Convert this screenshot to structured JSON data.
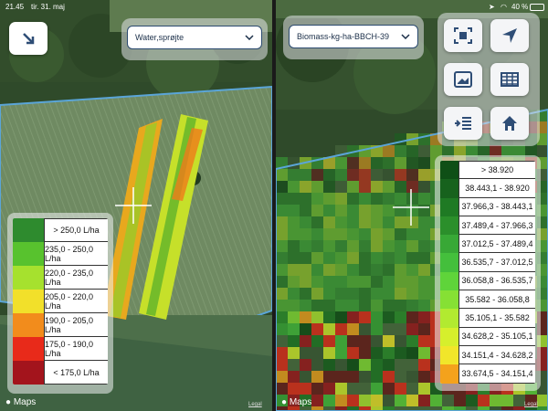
{
  "status": {
    "time": "21.45",
    "date": "tir. 31. maj",
    "battery": "40 %"
  },
  "left": {
    "layer_dropdown": {
      "value": "Water,sprøjte"
    },
    "legend": [
      {
        "label": "> 250,0 L/ha",
        "color": "#2e8b2e"
      },
      {
        "label": "235,0 - 250,0 L/ha",
        "color": "#58c22e"
      },
      {
        "label": "220,0 - 235,0 L/ha",
        "color": "#a6e12e"
      },
      {
        "label": "205,0 - 220,0 L/ha",
        "color": "#f2e02a"
      },
      {
        "label": "190,0 - 205,0 L/ha",
        "color": "#f28c1c"
      },
      {
        "label": "175,0 - 190,0 L/ha",
        "color": "#e82a1a"
      },
      {
        "label": "< 175,0 L/ha",
        "color": "#a3141c"
      }
    ]
  },
  "right": {
    "layer_dropdown": {
      "value": "Biomass-kg-ha-BBCH-39"
    },
    "legend": [
      {
        "label": "> 38.920",
        "color": "#0f4f16"
      },
      {
        "label": "38.443,1 - 38.920",
        "color": "#17621d"
      },
      {
        "label": "37.966,3 - 38.443,1",
        "color": "#1f7a24"
      },
      {
        "label": "37.489,4 - 37.966,3",
        "color": "#2b8f2b"
      },
      {
        "label": "37.012,5 - 37.489,4",
        "color": "#38a836"
      },
      {
        "label": "36.535,7 - 37.012,5",
        "color": "#44bf3c"
      },
      {
        "label": "36.058,8 - 36.535,7",
        "color": "#5fd43a"
      },
      {
        "label": "35.582 - 36.058,8",
        "color": "#86e034"
      },
      {
        "label": "35.105,1 - 35.582",
        "color": "#b2ea30"
      },
      {
        "label": "34.628,2 - 35.105,1",
        "color": "#d6ef2c"
      },
      {
        "label": "34.151,4 - 34.628,2",
        "color": "#f1e62a"
      },
      {
        "label": "33.674,5 - 34.151,4",
        "color": "#f4a21c"
      }
    ]
  },
  "maps_brand": "Maps",
  "legal": "Legal"
}
